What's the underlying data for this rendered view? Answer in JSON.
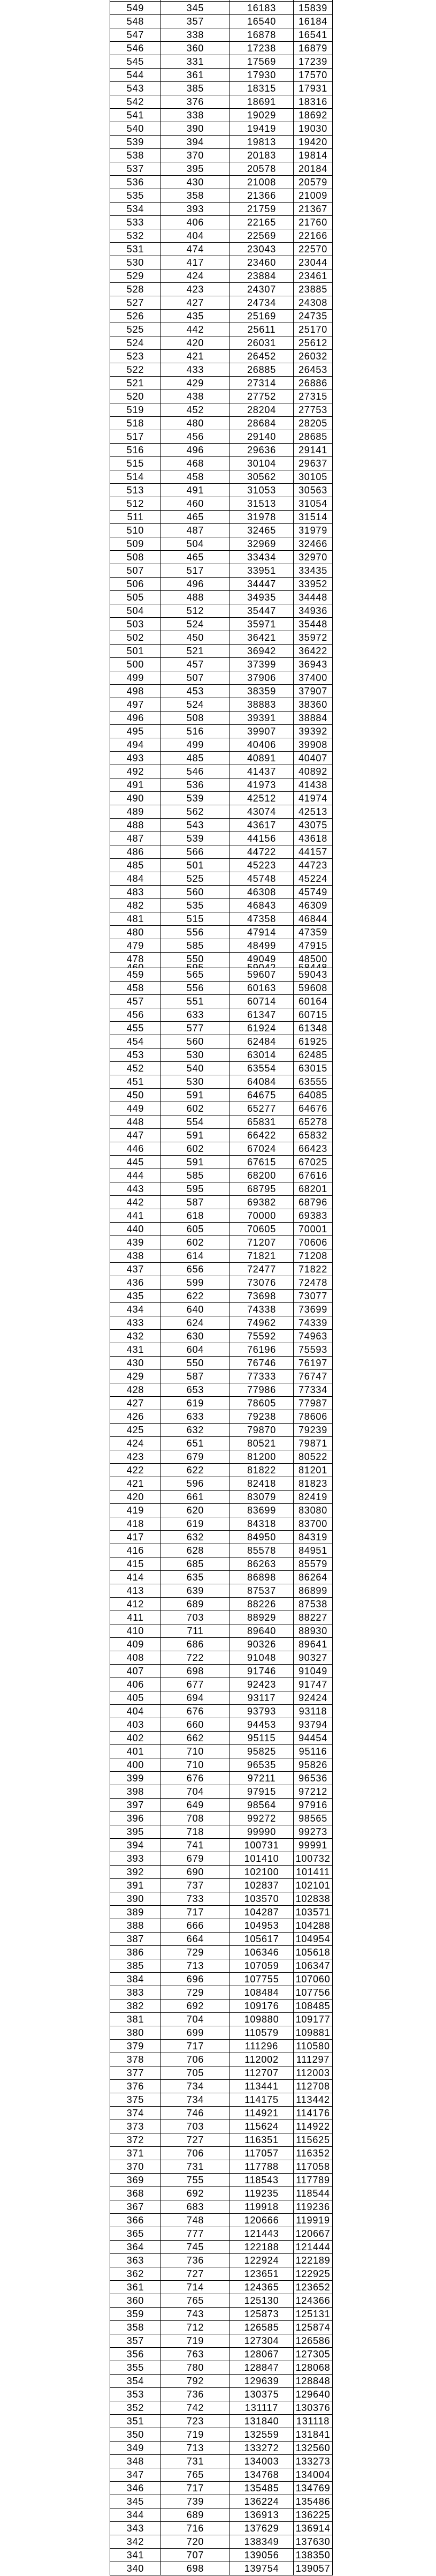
{
  "page": {
    "background_color": "#ffffff",
    "border_color": "#000000",
    "text_color": "#000000"
  },
  "table": {
    "description_rows_upper_range": "549 to 479",
    "rows_upper": [
      [
        549,
        345,
        16183,
        15839
      ],
      [
        548,
        357,
        16540,
        16184
      ],
      [
        547,
        338,
        16878,
        16541
      ],
      [
        546,
        360,
        17238,
        16879
      ],
      [
        545,
        331,
        17569,
        17239
      ],
      [
        544,
        361,
        17930,
        17570
      ],
      [
        543,
        385,
        18315,
        17931
      ],
      [
        542,
        376,
        18691,
        18316
      ],
      [
        541,
        338,
        19029,
        18692
      ],
      [
        540,
        390,
        19419,
        19030
      ],
      [
        539,
        394,
        19813,
        19420
      ],
      [
        538,
        370,
        20183,
        19814
      ],
      [
        537,
        395,
        20578,
        20184
      ],
      [
        536,
        430,
        21008,
        20579
      ],
      [
        535,
        358,
        21366,
        21009
      ],
      [
        534,
        393,
        21759,
        21367
      ],
      [
        533,
        406,
        22165,
        21760
      ],
      [
        532,
        404,
        22569,
        22166
      ],
      [
        531,
        474,
        23043,
        22570
      ],
      [
        530,
        417,
        23460,
        23044
      ],
      [
        529,
        424,
        23884,
        23461
      ],
      [
        528,
        423,
        24307,
        23885
      ],
      [
        527,
        427,
        24734,
        24308
      ],
      [
        526,
        435,
        25169,
        24735
      ],
      [
        525,
        442,
        25611,
        25170
      ],
      [
        524,
        420,
        26031,
        25612
      ],
      [
        523,
        421,
        26452,
        26032
      ],
      [
        522,
        433,
        26885,
        26453
      ],
      [
        521,
        429,
        27314,
        26886
      ],
      [
        520,
        438,
        27752,
        27315
      ],
      [
        519,
        452,
        28204,
        27753
      ],
      [
        518,
        480,
        28684,
        28205
      ],
      [
        517,
        456,
        29140,
        28685
      ],
      [
        516,
        496,
        29636,
        29141
      ],
      [
        515,
        468,
        30104,
        29637
      ],
      [
        514,
        458,
        30562,
        30105
      ],
      [
        513,
        491,
        31053,
        30563
      ],
      [
        512,
        460,
        31513,
        31054
      ],
      [
        511,
        465,
        31978,
        31514
      ],
      [
        510,
        487,
        32465,
        31979
      ],
      [
        509,
        504,
        32969,
        32466
      ],
      [
        508,
        465,
        33434,
        32970
      ],
      [
        507,
        517,
        33951,
        33435
      ],
      [
        506,
        496,
        34447,
        33952
      ],
      [
        505,
        488,
        34935,
        34448
      ],
      [
        504,
        512,
        35447,
        34936
      ],
      [
        503,
        524,
        35971,
        35448
      ],
      [
        502,
        450,
        36421,
        35972
      ],
      [
        501,
        521,
        36942,
        36422
      ],
      [
        500,
        457,
        37399,
        36943
      ],
      [
        499,
        507,
        37906,
        37400
      ],
      [
        498,
        453,
        38359,
        37907
      ],
      [
        497,
        524,
        38883,
        38360
      ],
      [
        496,
        508,
        39391,
        38884
      ],
      [
        495,
        516,
        39907,
        39392
      ],
      [
        494,
        499,
        40406,
        39908
      ],
      [
        493,
        485,
        40891,
        40407
      ],
      [
        492,
        546,
        41437,
        40892
      ],
      [
        491,
        536,
        41973,
        41438
      ],
      [
        490,
        539,
        42512,
        41974
      ],
      [
        489,
        562,
        43074,
        42513
      ],
      [
        488,
        543,
        43617,
        43075
      ],
      [
        487,
        539,
        44156,
        43618
      ],
      [
        486,
        566,
        44722,
        44157
      ],
      [
        485,
        501,
        45223,
        44723
      ],
      [
        484,
        525,
        45748,
        45224
      ],
      [
        483,
        560,
        46308,
        45749
      ],
      [
        482,
        535,
        46843,
        46309
      ],
      [
        481,
        515,
        47358,
        46844
      ],
      [
        480,
        556,
        47914,
        47359
      ],
      [
        479,
        585,
        48499,
        47915
      ]
    ],
    "overlap_row": {
      "visible": [
        478,
        550,
        49049,
        48500
      ],
      "clipped": [
        460,
        595,
        59042,
        58448
      ]
    },
    "description_rows_lower_range": "459 to 340",
    "rows_lower": [
      [
        459,
        565,
        59607,
        59043
      ],
      [
        458,
        556,
        60163,
        59608
      ],
      [
        457,
        551,
        60714,
        60164
      ],
      [
        456,
        633,
        61347,
        60715
      ],
      [
        455,
        577,
        61924,
        61348
      ],
      [
        454,
        560,
        62484,
        61925
      ],
      [
        453,
        530,
        63014,
        62485
      ],
      [
        452,
        540,
        63554,
        63015
      ],
      [
        451,
        530,
        64084,
        63555
      ],
      [
        450,
        591,
        64675,
        64085
      ],
      [
        449,
        602,
        65277,
        64676
      ],
      [
        448,
        554,
        65831,
        65278
      ],
      [
        447,
        591,
        66422,
        65832
      ],
      [
        446,
        602,
        67024,
        66423
      ],
      [
        445,
        591,
        67615,
        67025
      ],
      [
        444,
        585,
        68200,
        67616
      ],
      [
        443,
        595,
        68795,
        68201
      ],
      [
        442,
        587,
        69382,
        68796
      ],
      [
        441,
        618,
        70000,
        69383
      ],
      [
        440,
        605,
        70605,
        70001
      ],
      [
        439,
        602,
        71207,
        70606
      ],
      [
        438,
        614,
        71821,
        71208
      ],
      [
        437,
        656,
        72477,
        71822
      ],
      [
        436,
        599,
        73076,
        72478
      ],
      [
        435,
        622,
        73698,
        73077
      ],
      [
        434,
        640,
        74338,
        73699
      ],
      [
        433,
        624,
        74962,
        74339
      ],
      [
        432,
        630,
        75592,
        74963
      ],
      [
        431,
        604,
        76196,
        75593
      ],
      [
        430,
        550,
        76746,
        76197
      ],
      [
        429,
        587,
        77333,
        76747
      ],
      [
        428,
        653,
        77986,
        77334
      ],
      [
        427,
        619,
        78605,
        77987
      ],
      [
        426,
        633,
        79238,
        78606
      ],
      [
        425,
        632,
        79870,
        79239
      ],
      [
        424,
        651,
        80521,
        79871
      ],
      [
        423,
        679,
        81200,
        80522
      ],
      [
        422,
        622,
        81822,
        81201
      ],
      [
        421,
        596,
        82418,
        81823
      ],
      [
        420,
        661,
        83079,
        82419
      ],
      [
        419,
        620,
        83699,
        83080
      ],
      [
        418,
        619,
        84318,
        83700
      ],
      [
        417,
        632,
        84950,
        84319
      ],
      [
        416,
        628,
        85578,
        84951
      ],
      [
        415,
        685,
        86263,
        85579
      ],
      [
        414,
        635,
        86898,
        86264
      ],
      [
        413,
        639,
        87537,
        86899
      ],
      [
        412,
        689,
        88226,
        87538
      ],
      [
        411,
        703,
        88929,
        88227
      ],
      [
        410,
        711,
        89640,
        88930
      ],
      [
        409,
        686,
        90326,
        89641
      ],
      [
        408,
        722,
        91048,
        90327
      ],
      [
        407,
        698,
        91746,
        91049
      ],
      [
        406,
        677,
        92423,
        91747
      ],
      [
        405,
        694,
        93117,
        92424
      ],
      [
        404,
        676,
        93793,
        93118
      ],
      [
        403,
        660,
        94453,
        93794
      ],
      [
        402,
        662,
        95115,
        94454
      ],
      [
        401,
        710,
        95825,
        95116
      ],
      [
        400,
        710,
        96535,
        95826
      ],
      [
        399,
        676,
        97211,
        96536
      ],
      [
        398,
        704,
        97915,
        97212
      ],
      [
        397,
        649,
        98564,
        97916
      ],
      [
        396,
        708,
        99272,
        98565
      ],
      [
        395,
        718,
        99990,
        99273
      ],
      [
        394,
        741,
        100731,
        99991
      ],
      [
        393,
        679,
        101410,
        100732
      ],
      [
        392,
        690,
        102100,
        101411
      ],
      [
        391,
        737,
        102837,
        102101
      ],
      [
        390,
        733,
        103570,
        102838
      ],
      [
        389,
        717,
        104287,
        103571
      ],
      [
        388,
        666,
        104953,
        104288
      ],
      [
        387,
        664,
        105617,
        104954
      ],
      [
        386,
        729,
        106346,
        105618
      ],
      [
        385,
        713,
        107059,
        106347
      ],
      [
        384,
        696,
        107755,
        107060
      ],
      [
        383,
        729,
        108484,
        107756
      ],
      [
        382,
        692,
        109176,
        108485
      ],
      [
        381,
        704,
        109880,
        109177
      ],
      [
        380,
        699,
        110579,
        109881
      ],
      [
        379,
        717,
        111296,
        110580
      ],
      [
        378,
        706,
        112002,
        111297
      ],
      [
        377,
        705,
        112707,
        112003
      ],
      [
        376,
        734,
        113441,
        112708
      ],
      [
        375,
        734,
        114175,
        113442
      ],
      [
        374,
        746,
        114921,
        114176
      ],
      [
        373,
        703,
        115624,
        114922
      ],
      [
        372,
        727,
        116351,
        115625
      ],
      [
        371,
        706,
        117057,
        116352
      ],
      [
        370,
        731,
        117788,
        117058
      ],
      [
        369,
        755,
        118543,
        117789
      ],
      [
        368,
        692,
        119235,
        118544
      ],
      [
        367,
        683,
        119918,
        119236
      ],
      [
        366,
        748,
        120666,
        119919
      ],
      [
        365,
        777,
        121443,
        120667
      ],
      [
        364,
        745,
        122188,
        121444
      ],
      [
        363,
        736,
        122924,
        122189
      ],
      [
        362,
        727,
        123651,
        122925
      ],
      [
        361,
        714,
        124365,
        123652
      ],
      [
        360,
        765,
        125130,
        124366
      ],
      [
        359,
        743,
        125873,
        125131
      ],
      [
        358,
        712,
        126585,
        125874
      ],
      [
        357,
        719,
        127304,
        126586
      ],
      [
        356,
        763,
        128067,
        127305
      ],
      [
        355,
        780,
        128847,
        128068
      ],
      [
        354,
        792,
        129639,
        128848
      ],
      [
        353,
        736,
        130375,
        129640
      ],
      [
        352,
        742,
        131117,
        130376
      ],
      [
        351,
        723,
        131840,
        131118
      ],
      [
        350,
        719,
        132559,
        131841
      ],
      [
        349,
        713,
        133272,
        132560
      ],
      [
        348,
        731,
        134003,
        133273
      ],
      [
        347,
        765,
        134768,
        134004
      ],
      [
        346,
        717,
        135485,
        134769
      ],
      [
        345,
        739,
        136224,
        135486
      ],
      [
        344,
        689,
        136913,
        136225
      ],
      [
        343,
        716,
        137629,
        136914
      ],
      [
        342,
        720,
        138349,
        137630
      ],
      [
        341,
        707,
        139056,
        138350
      ],
      [
        340,
        698,
        139754,
        139057
      ]
    ]
  }
}
